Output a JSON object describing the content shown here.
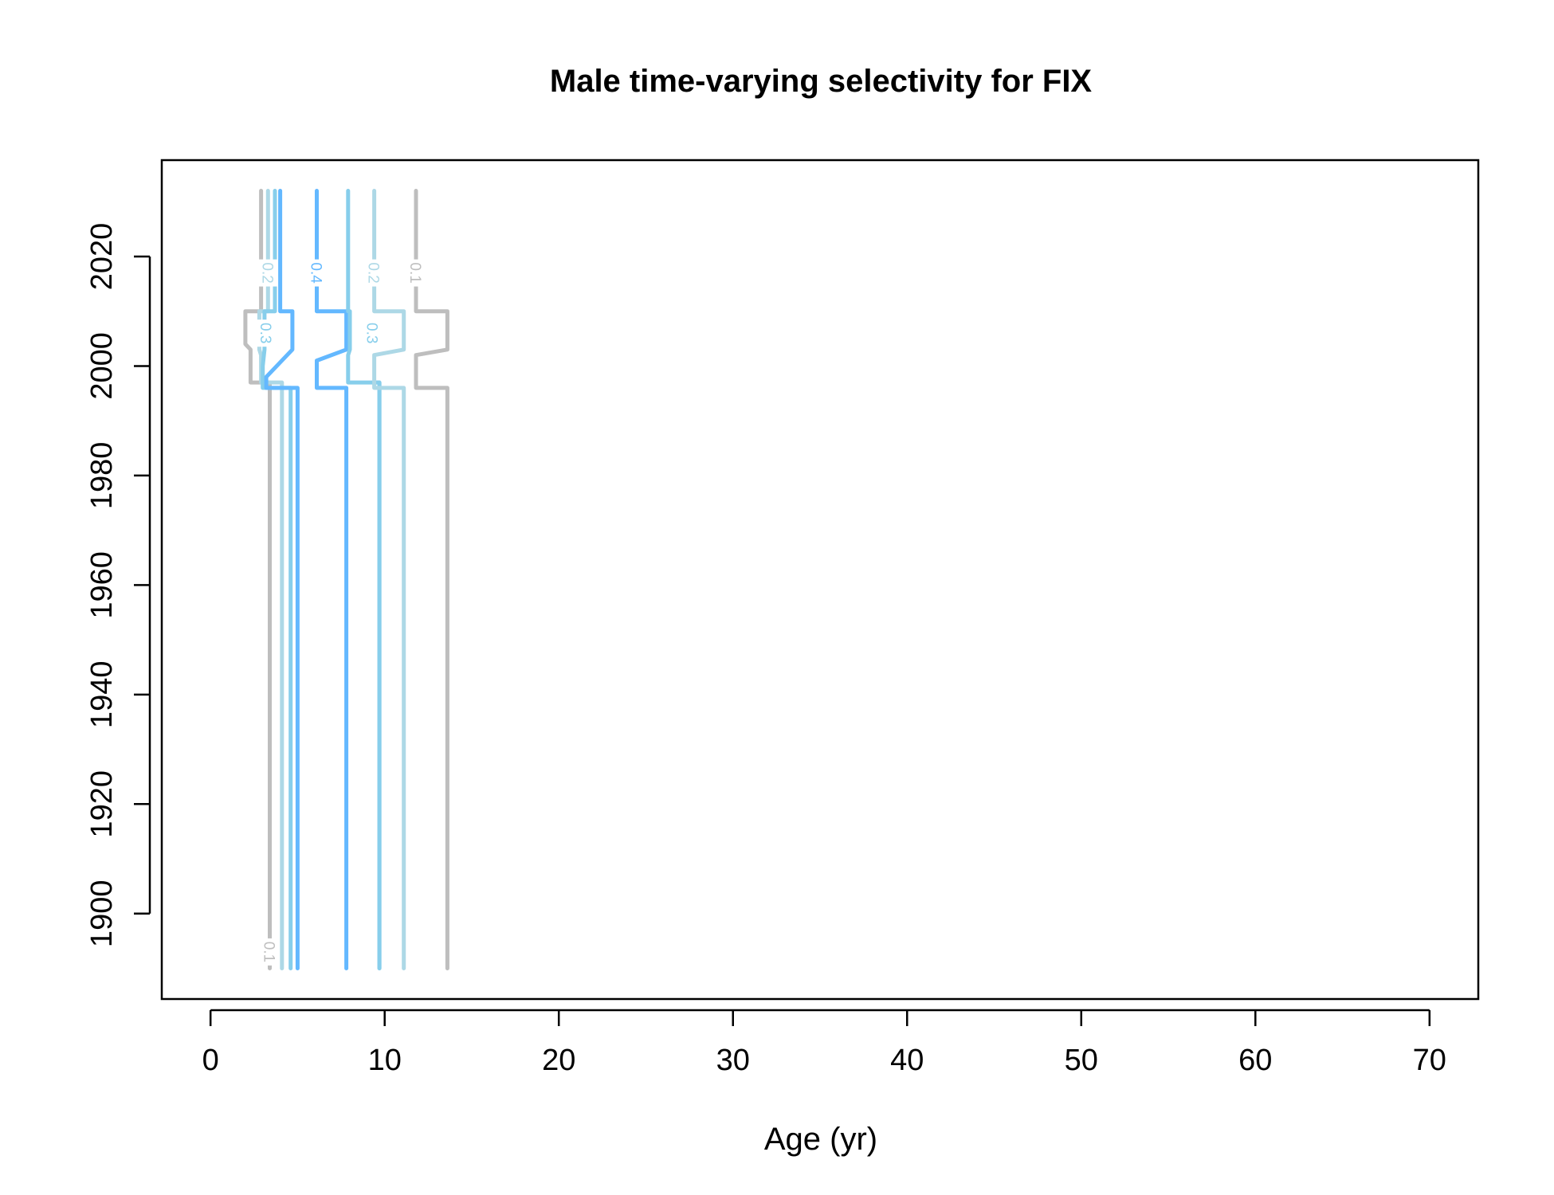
{
  "chart_data": {
    "type": "contour",
    "title": "Male time-varying selectivity for FIX",
    "xlabel": "Age (yr)",
    "ylabel": "",
    "xlim": [
      -2.8,
      72.8
    ],
    "ylim": [
      1884.4,
      2037.6
    ],
    "x_ticks": [
      "0",
      "10",
      "20",
      "30",
      "40",
      "50",
      "60",
      "70"
    ],
    "y_ticks": [
      "1900",
      "1920",
      "1940",
      "1960",
      "1980",
      "2000",
      "2020"
    ],
    "grid": false,
    "legend": "none",
    "contours": [
      {
        "level": "0.1",
        "color": "#bebebe",
        "path": [
          [
            3.4,
            1890
          ],
          [
            3.4,
            1997
          ],
          [
            2.3,
            1997
          ],
          [
            2.3,
            2003
          ],
          [
            2.0,
            2004
          ],
          [
            2.0,
            2010
          ],
          [
            2.9,
            2010
          ],
          [
            2.9,
            2032
          ]
        ],
        "label": {
          "text": "0.1",
          "x": 3.4,
          "y": 1893
        }
      },
      {
        "level": "0.2",
        "color": "#add8e6",
        "path": [
          [
            4.1,
            1890
          ],
          [
            4.1,
            1997
          ],
          [
            2.9,
            1997
          ],
          [
            2.9,
            2002
          ],
          [
            2.8,
            2003
          ],
          [
            2.8,
            2010
          ],
          [
            3.3,
            2010
          ],
          [
            3.3,
            2032
          ]
        ],
        "label": {
          "text": "0.2",
          "x": 3.3,
          "y": 2017
        }
      },
      {
        "level": "0.3",
        "color": "#87ceeb",
        "path": [
          [
            4.6,
            1890
          ],
          [
            4.6,
            1996
          ],
          [
            3.0,
            1996
          ],
          [
            3.0,
            2000
          ],
          [
            3.1,
            2003
          ],
          [
            3.1,
            2010
          ],
          [
            3.7,
            2010
          ],
          [
            3.7,
            2032
          ]
        ],
        "label": {
          "text": "0.3",
          "x": 3.2,
          "y": 2006
        }
      },
      {
        "level": "0.4",
        "color": "#63b8ff",
        "path": [
          [
            5.0,
            1890
          ],
          [
            5.0,
            1996
          ],
          [
            3.2,
            1996
          ],
          [
            3.2,
            1998
          ],
          [
            4.7,
            2003
          ],
          [
            4.7,
            2010
          ],
          [
            4.0,
            2010
          ],
          [
            4.0,
            2032
          ]
        ],
        "label": null
      },
      {
        "level": "0.4",
        "color": "#63b8ff",
        "path": [
          [
            7.8,
            1890
          ],
          [
            7.8,
            1996
          ],
          [
            6.1,
            1996
          ],
          [
            6.1,
            2001
          ],
          [
            7.8,
            2003
          ],
          [
            7.8,
            2010
          ],
          [
            6.1,
            2010
          ],
          [
            6.1,
            2032
          ]
        ],
        "label": {
          "text": "0.4",
          "x": 6.1,
          "y": 2017
        }
      },
      {
        "level": "0.3",
        "color": "#87ceeb",
        "path": [
          [
            9.7,
            1890
          ],
          [
            9.7,
            1997
          ],
          [
            7.9,
            1997
          ],
          [
            7.9,
            2002
          ],
          [
            8.0,
            2003
          ],
          [
            8.0,
            2010
          ],
          [
            7.9,
            2010
          ],
          [
            7.9,
            2032
          ]
        ],
        "label": null
      },
      {
        "level": "0.3",
        "color": "#87ceeb",
        "path": [
          [
            9.7,
            1890
          ],
          [
            9.7,
            1997
          ],
          [
            9.3,
            1997
          ]
        ],
        "label": {
          "text": "0.3",
          "x": 9.3,
          "y": 2006
        }
      },
      {
        "level": "0.2",
        "color": "#add8e6",
        "path": [
          [
            11.1,
            1890
          ],
          [
            11.1,
            1996
          ],
          [
            9.4,
            1996
          ],
          [
            9.4,
            2002
          ],
          [
            11.1,
            2003
          ],
          [
            11.1,
            2010
          ],
          [
            9.4,
            2010
          ],
          [
            9.4,
            2032
          ]
        ],
        "label": {
          "text": "0.2",
          "x": 9.4,
          "y": 2017
        }
      },
      {
        "level": "0.1",
        "color": "#bebebe",
        "path": [
          [
            13.6,
            1890
          ],
          [
            13.6,
            1996
          ],
          [
            11.8,
            1996
          ],
          [
            11.8,
            2002
          ],
          [
            13.6,
            2003
          ],
          [
            13.6,
            2010
          ],
          [
            11.8,
            2010
          ],
          [
            11.8,
            2032
          ]
        ],
        "label": {
          "text": "0.1",
          "x": 11.8,
          "y": 2017
        }
      }
    ]
  }
}
